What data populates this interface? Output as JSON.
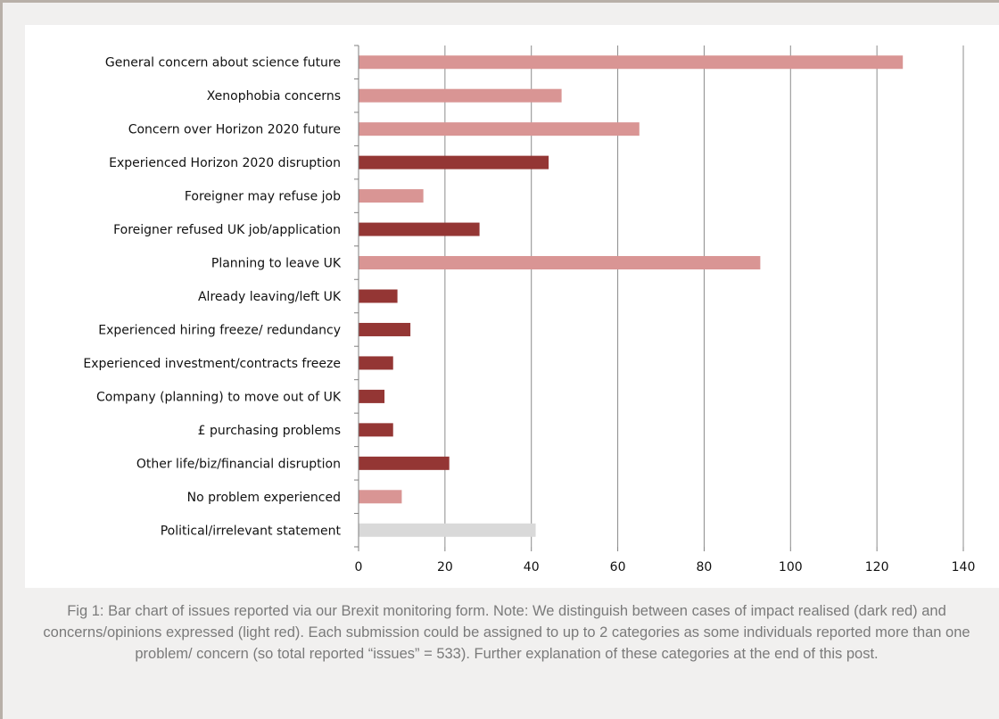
{
  "chart_data": {
    "type": "bar",
    "orientation": "horizontal",
    "categories": [
      "General concern about science future",
      "Xenophobia concerns",
      "Concern over Horizon 2020 future",
      "Experienced Horizon 2020 disruption",
      "Foreigner may refuse job",
      "Foreigner refused UK job/application",
      "Planning to leave UK",
      "Already leaving/left UK",
      "Experienced hiring freeze/ redundancy",
      "Experienced investment/contracts freeze",
      "Company (planning) to move out of UK",
      "£ purchasing problems",
      "Other life/biz/financial disruption",
      "No problem experienced",
      "Political/irrelevant  statement"
    ],
    "values": [
      126,
      47,
      65,
      44,
      15,
      28,
      93,
      9,
      12,
      8,
      6,
      8,
      21,
      10,
      41
    ],
    "bar_types": [
      "concern",
      "concern",
      "concern",
      "impact",
      "concern",
      "impact",
      "concern",
      "impact",
      "impact",
      "impact",
      "impact",
      "impact",
      "impact",
      "concern",
      "irrelevant"
    ],
    "colors": {
      "impact": "#943634",
      "concern": "#d99594",
      "irrelevant": "#d9d9d9"
    },
    "xlim": [
      0,
      140
    ],
    "xticks": [
      0,
      20,
      40,
      60,
      80,
      100,
      120,
      140
    ],
    "grid": true,
    "title": "",
    "xlabel": "",
    "ylabel": ""
  },
  "caption": "Fig 1: Bar chart of issues reported via our Brexit monitoring form. Note: We distinguish between cases of impact realised (dark red) and concerns/opinions expressed (light red). Each submission could be assigned to up to 2 categories as some individuals reported more than one problem/ concern (so total reported “issues” = 533). Further explanation of these categories at the end of this post."
}
